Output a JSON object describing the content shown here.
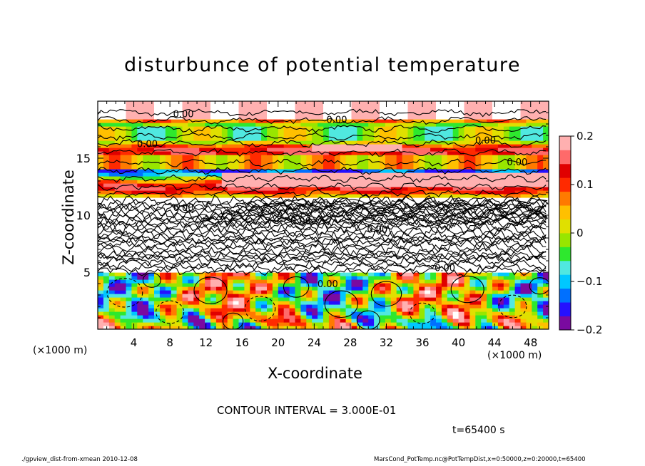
{
  "title": "disturbunce of potential temperature",
  "x_unit_left": "(×1000 m)",
  "x_unit_right": "(×1000 m)",
  "contour_interval_text": "CONTOUR INTERVAL = 3.000E-01",
  "time_text": "t=65400 s",
  "footer_left": "./gpview_dist-from-xmean  2010-12-08",
  "footer_right": "MarsCond_PotTemp.nc@PotTempDist,x=0:50000,z=0:20000,t=65400",
  "chart_data": {
    "type": "heatmap",
    "title": "disturbunce of potential temperature",
    "xlabel": "X-coordinate",
    "ylabel": "Z-coordinate",
    "x_unit": "(×1000 m)",
    "y_unit": "(×1000 m)",
    "xlim": [
      0,
      50
    ],
    "ylim": [
      0,
      20
    ],
    "x_ticks": [
      4,
      8,
      12,
      16,
      20,
      24,
      28,
      32,
      36,
      40,
      44,
      48
    ],
    "y_ticks": [
      5,
      10,
      15
    ],
    "colorbar": {
      "min": -0.2,
      "max": 0.2,
      "tick_values": [
        0.2,
        0.1,
        0,
        -0.1,
        -0.2
      ],
      "tick_labels": [
        "0.2",
        "0.1",
        "0",
        "−0.1",
        "−0.2"
      ],
      "colors": [
        "#7a0aa0",
        "#2510ff",
        "#0070ff",
        "#00c8ff",
        "#50e8e0",
        "#2ee82e",
        "#98e600",
        "#e0e000",
        "#ffc000",
        "#ff7a00",
        "#ff2a00",
        "#e00000",
        "#ff6a6a",
        "#ffb0b0"
      ]
    },
    "contour_interval": 0.3,
    "contour_labels": [
      {
        "x": 9.5,
        "z": 18.8,
        "text": "0.00"
      },
      {
        "x": 26.5,
        "z": 18.3,
        "text": "0.00"
      },
      {
        "x": 5.5,
        "z": 16.2,
        "text": "0.00"
      },
      {
        "x": 43.0,
        "z": 16.5,
        "text": "0.00"
      },
      {
        "x": 46.5,
        "z": 14.6,
        "text": "0.00"
      },
      {
        "x": 9.5,
        "z": 10.6,
        "text": "0.00"
      },
      {
        "x": 22.5,
        "z": 9.4,
        "text": "0.00"
      },
      {
        "x": 31.0,
        "z": 8.7,
        "text": "0.00"
      },
      {
        "x": 38.5,
        "z": 5.3,
        "text": "0.00"
      },
      {
        "x": 25.5,
        "z": 3.9,
        "text": "0.00"
      }
    ],
    "time": "t=65400 s"
  }
}
